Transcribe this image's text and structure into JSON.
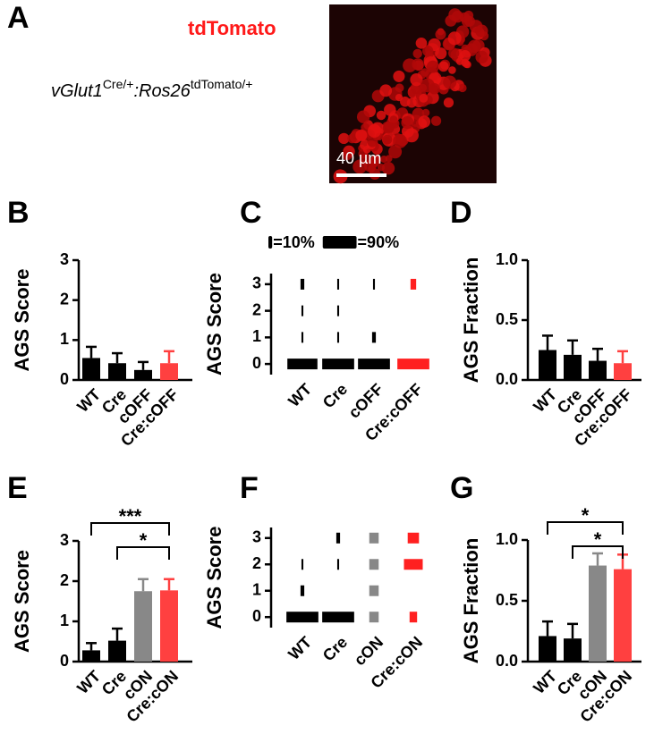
{
  "panel_labels": [
    "A",
    "B",
    "C",
    "D",
    "E",
    "F",
    "G"
  ],
  "panel_a": {
    "title": "tdTomato",
    "genotype": [
      "vGlut1",
      "Cre/+",
      ":Ros26",
      "tdTomato/+"
    ],
    "scale_bar": "40 µm"
  },
  "chart_data": [
    {
      "type": "bar",
      "y_label": "AGS Score",
      "categories": [
        "WT",
        "Cre",
        "cOFF",
        "Cre:cOFF"
      ],
      "values": [
        0.55,
        0.42,
        0.25,
        0.42
      ],
      "errors": [
        0.28,
        0.25,
        0.2,
        0.3
      ],
      "colors": [
        "#000000",
        "#000000",
        "#000000",
        "#ff4040"
      ],
      "ylim": [
        0,
        3
      ],
      "yticks": [
        0,
        1,
        2,
        3
      ]
    },
    {
      "type": "distribution",
      "y_label": "AGS Score",
      "categories": [
        "WT",
        "Cre",
        "cOFF",
        "Cre:cOFF"
      ],
      "colors": [
        "#000000",
        "#000000",
        "#000000",
        "#ff2020"
      ],
      "ylim": [
        -0.4,
        3.4
      ],
      "yticks": [
        0,
        1,
        2,
        3
      ],
      "percent": [
        [
          80,
          5,
          5,
          10
        ],
        [
          85,
          5,
          5,
          5
        ],
        [
          85,
          10,
          0,
          5
        ],
        [
          85,
          0,
          0,
          15
        ]
      ],
      "legend": [
        {
          "value": 10,
          "label": "=10%"
        },
        {
          "value": 90,
          "label": "=90%"
        }
      ]
    },
    {
      "type": "bar",
      "y_label": "AGS Fraction",
      "categories": [
        "WT",
        "Cre",
        "cOFF",
        "Cre:cOFF"
      ],
      "values": [
        0.25,
        0.21,
        0.16,
        0.14
      ],
      "errors": [
        0.12,
        0.12,
        0.1,
        0.1
      ],
      "colors": [
        "#000000",
        "#000000",
        "#000000",
        "#ff4040"
      ],
      "ylim": [
        0,
        1
      ],
      "yticks": [
        {
          "value": 0,
          "label": "0.0"
        },
        {
          "value": 0.5,
          "label": "0.5"
        },
        {
          "value": 1,
          "label": "1.0"
        }
      ]
    },
    {
      "type": "bar",
      "y_label": "AGS Score",
      "categories": [
        "WT",
        "Cre",
        "cON",
        "Cre:cON"
      ],
      "values": [
        0.28,
        0.52,
        1.75,
        1.77
      ],
      "errors": [
        0.18,
        0.3,
        0.3,
        0.28
      ],
      "colors": [
        "#000000",
        "#000000",
        "#888888",
        "#ff4040"
      ],
      "ylim": [
        0,
        3
      ],
      "yticks": [
        0,
        1,
        2,
        3
      ],
      "significance": [
        {
          "between": [
            0,
            3
          ],
          "label": "***"
        },
        {
          "between": [
            1,
            3
          ],
          "label": "*"
        }
      ]
    },
    {
      "type": "distribution",
      "y_label": "AGS Score",
      "categories": [
        "WT",
        "Cre",
        "cON",
        "Cre:cON"
      ],
      "colors": [
        "#000000",
        "#000000",
        "#888888",
        "#ff2020"
      ],
      "ylim": [
        -0.4,
        3.4
      ],
      "yticks": [
        0,
        1,
        2,
        3
      ],
      "percent": [
        [
          85,
          10,
          5,
          0
        ],
        [
          85,
          0,
          5,
          10
        ],
        [
          25,
          25,
          25,
          25
        ],
        [
          20,
          0,
          50,
          30
        ]
      ]
    },
    {
      "type": "bar",
      "y_label": "AGS  Fraction",
      "categories": [
        "WT",
        "Cre",
        "cON",
        "Cre:cON"
      ],
      "values": [
        0.21,
        0.19,
        0.79,
        0.76
      ],
      "errors": [
        0.12,
        0.12,
        0.1,
        0.12
      ],
      "colors": [
        "#000000",
        "#000000",
        "#888888",
        "#ff4040"
      ],
      "ylim": [
        0,
        1
      ],
      "yticks": [
        {
          "value": 0,
          "label": "0.0"
        },
        {
          "value": 0.5,
          "label": "0.5"
        },
        {
          "value": 1,
          "label": "1.0"
        }
      ],
      "significance": [
        {
          "between": [
            0,
            3
          ],
          "label": "*"
        },
        {
          "between": [
            1,
            3
          ],
          "label": "*"
        }
      ]
    }
  ]
}
